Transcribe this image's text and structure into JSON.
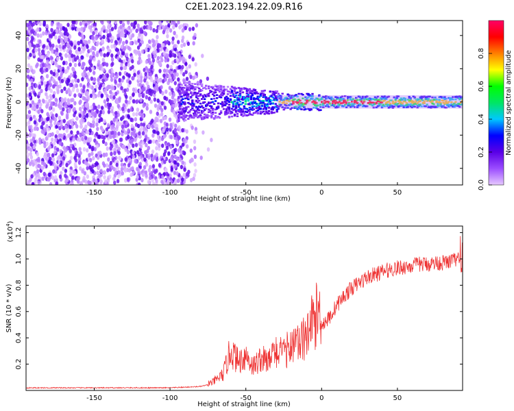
{
  "title": "C2E1.2023.194.22.09.R16",
  "chart_data": [
    {
      "type": "heatmap",
      "xlabel": "Height of straight line (km)",
      "ylabel": "Frequency (Hz)",
      "xlim": [
        -195,
        93
      ],
      "ylim": [
        -50,
        49
      ],
      "xticks": [
        -150,
        -100,
        -50,
        0,
        50
      ],
      "yticks": [
        -40,
        -20,
        0,
        20,
        40
      ],
      "colorbar": {
        "label": "Normalized spectral amplitude",
        "range": [
          0.0,
          1.0
        ],
        "ticks": [
          "0.0",
          "0.2",
          "0.4",
          "0.6",
          "0.8"
        ],
        "colors": [
          "#e6c8ff",
          "#9b4dff",
          "#5a00e6",
          "#0000ff",
          "#00c8ff",
          "#00e664",
          "#00ff00",
          "#ffff00",
          "#ff7f00",
          "#ff0000",
          "#ff0066"
        ]
      },
      "description_points": {
        "noise_region_x": [
          -195,
          -82
        ],
        "signal_band_start_x": -95,
        "signal_peak_freq": 0,
        "peak_amplitude_x": [
          -20,
          40
        ]
      }
    },
    {
      "type": "line",
      "xlabel": "Height of straight line (km)",
      "ylabel": "SNR (10 * v/v)",
      "multiplier": "(x10",
      "multiplier_exp": "4",
      "multiplier_close": ")",
      "xlim": [
        -195,
        93
      ],
      "ylim": [
        0,
        1.25
      ],
      "xticks": [
        -150,
        -100,
        -50,
        0,
        50
      ],
      "yticks": [
        0.2,
        0.4,
        0.6,
        0.8,
        1.0,
        1.2
      ],
      "ytick_labels": [
        "0.2",
        "0.4",
        "0.6",
        "0.8",
        "1.0",
        "1.2"
      ],
      "color": "#ee3333",
      "x": [
        -195,
        -150,
        -100,
        -80,
        -72,
        -65,
        -60,
        -55,
        -50,
        -45,
        -40,
        -35,
        -30,
        -25,
        -20,
        -15,
        -10,
        -5,
        0,
        5,
        10,
        15,
        20,
        25,
        30,
        35,
        40,
        45,
        50,
        55,
        60,
        65,
        70,
        75,
        80,
        85,
        90,
        93
      ],
      "y": [
        0.02,
        0.02,
        0.02,
        0.03,
        0.05,
        0.1,
        0.25,
        0.18,
        0.22,
        0.15,
        0.2,
        0.18,
        0.25,
        0.22,
        0.3,
        0.28,
        0.35,
        0.45,
        0.5,
        0.55,
        0.65,
        0.72,
        0.78,
        0.82,
        0.86,
        0.88,
        0.9,
        0.92,
        0.93,
        0.94,
        0.95,
        0.96,
        0.96,
        0.97,
        0.97,
        0.98,
        1.0,
        0.9
      ]
    }
  ]
}
